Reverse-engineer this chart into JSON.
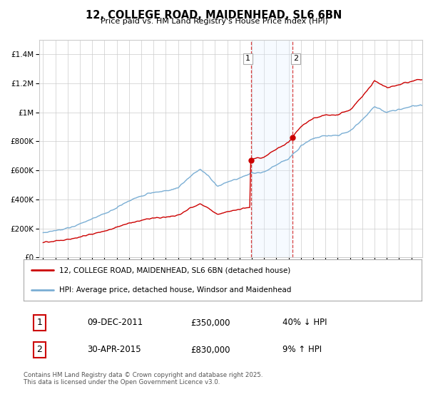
{
  "title": "12, COLLEGE ROAD, MAIDENHEAD, SL6 6BN",
  "subtitle": "Price paid vs. HM Land Registry's House Price Index (HPI)",
  "ylim": [
    0,
    1500000
  ],
  "yticks": [
    0,
    200000,
    400000,
    600000,
    800000,
    1000000,
    1200000,
    1400000
  ],
  "ytick_labels": [
    "£0",
    "£200K",
    "£400K",
    "£600K",
    "£800K",
    "£1M",
    "£1.2M",
    "£1.4M"
  ],
  "sale1_year_float": 2011.917,
  "sale1_price": 350000,
  "sale1_price_str": "£350,000",
  "sale1_date_str": "09-DEC-2011",
  "sale1_pct": "40% ↓ HPI",
  "sale2_year_float": 2015.333,
  "sale2_price": 830000,
  "sale2_price_str": "£830,000",
  "sale2_date_str": "30-APR-2015",
  "sale2_pct": "9% ↑ HPI",
  "legend1": "12, COLLEGE ROAD, MAIDENHEAD, SL6 6BN (detached house)",
  "legend2": "HPI: Average price, detached house, Windsor and Maidenhead",
  "footer": "Contains HM Land Registry data © Crown copyright and database right 2025.\nThis data is licensed under the Open Government Licence v3.0.",
  "hpi_color": "#7aaed4",
  "price_color": "#cc0000",
  "shade_color": "#ddeeff",
  "grid_color": "#cccccc",
  "bg_color": "#ffffff",
  "xmin": 1994.7,
  "xmax": 2025.9
}
